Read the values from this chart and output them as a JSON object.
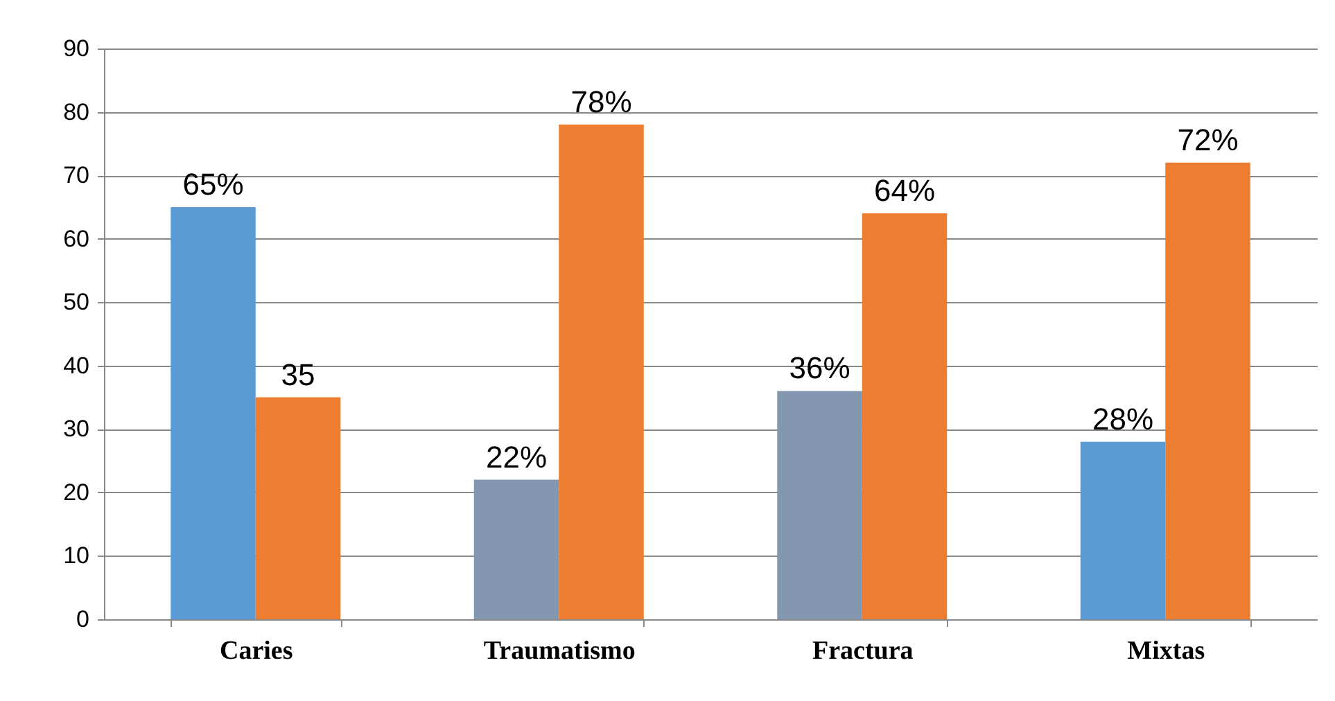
{
  "chart_data": {
    "type": "bar",
    "categories": [
      "Caries",
      "Traumatismo",
      "Fractura",
      "Mixtas"
    ],
    "series": [
      {
        "colors": [
          "#5b9bd5",
          "#8497b0",
          "#8497b0",
          "#5b9bd5"
        ],
        "values": [
          65,
          22,
          36,
          28
        ],
        "value_labels": [
          "65%",
          "22%",
          "36%",
          "28%"
        ]
      },
      {
        "color": "#ed7d31",
        "values": [
          35,
          78,
          64,
          72
        ],
        "value_labels": [
          "35",
          "78%",
          "64%",
          "72%"
        ]
      }
    ],
    "ylim": [
      0,
      90
    ],
    "yticks": [
      0,
      10,
      20,
      30,
      40,
      50,
      60,
      70,
      80,
      90
    ],
    "grid": "y"
  }
}
